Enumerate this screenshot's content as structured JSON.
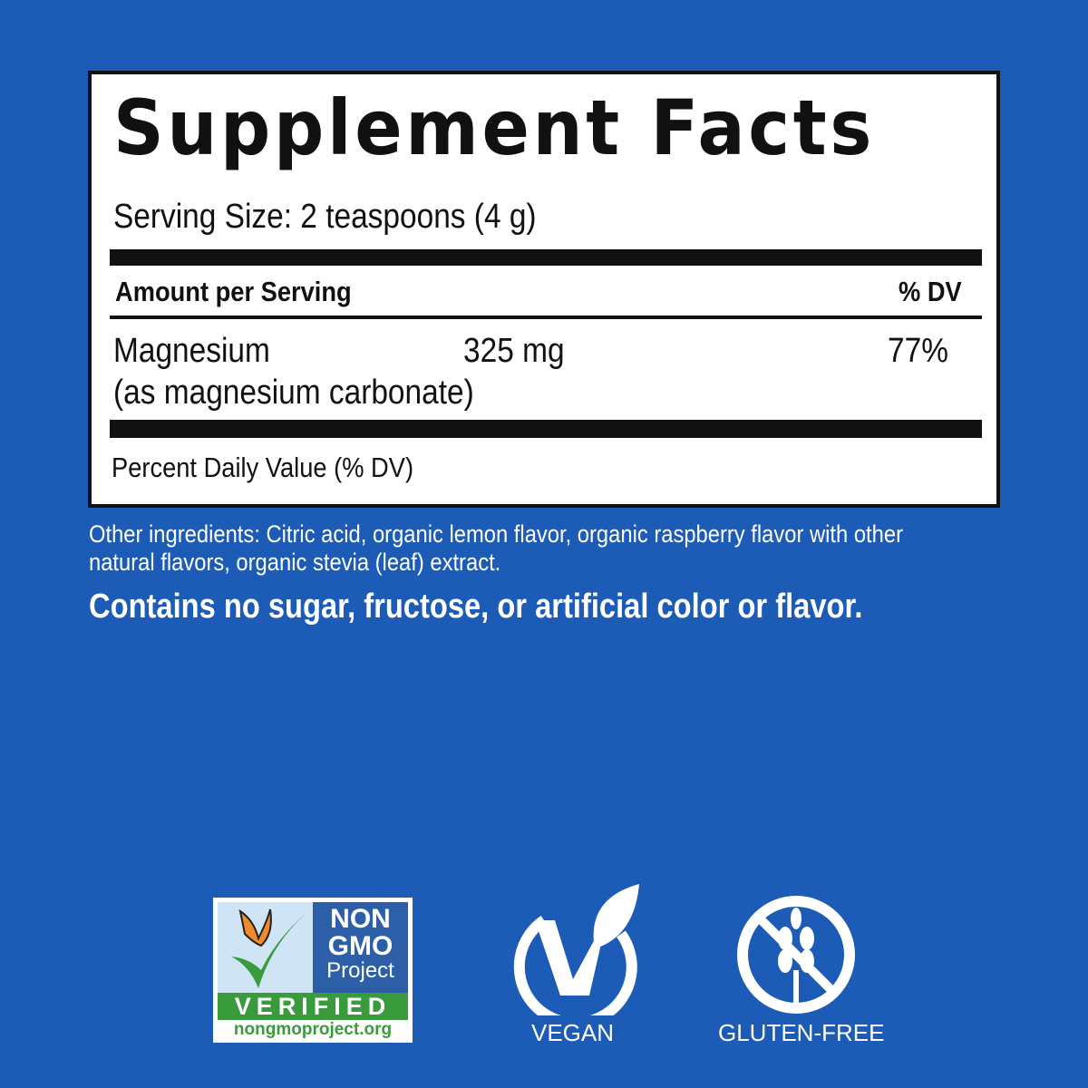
{
  "label": {
    "title": "Supplement Facts",
    "serving_size": "Serving Size: 2 teaspoons (4 g)",
    "amount_header": "Amount per Serving",
    "dv_header": "% DV",
    "nutrient": {
      "name": "Magnesium",
      "form": "(as magnesium carbonate)",
      "amount": "325 mg",
      "dv": "77%"
    },
    "footnote": "Percent Daily Value (% DV)"
  },
  "other_ingredients_line1": "Other ingredients: Citric acid, organic lemon flavor, organic raspberry flavor with other",
  "other_ingredients_line2": "natural flavors, organic stevia (leaf) extract.",
  "claim": "Contains no sugar, fructose, or artificial color or flavor.",
  "badges": {
    "nongmo": {
      "line1": "NON",
      "line2": "GMO",
      "line3": "Project",
      "verified": "VERIFIED",
      "url": "nongmoproject.org"
    },
    "vegan": "VEGAN",
    "gluten_free": "GLUTEN-FREE"
  },
  "colors": {
    "background": "#1c5bb6",
    "nongmo_green": "#3a9b3c",
    "nongmo_blue": "#2c5fa8"
  }
}
